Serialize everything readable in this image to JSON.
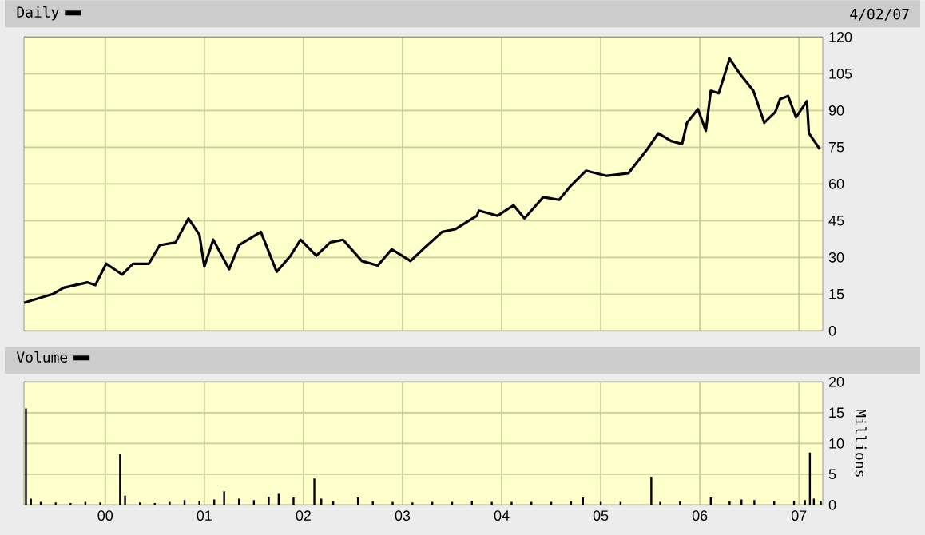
{
  "chart_data": [
    {
      "type": "line",
      "title": null,
      "subtitle": "4/02/07",
      "series": [
        {
          "name": "Daily",
          "color": "#000000",
          "x": [
            1999.18,
            1999.47,
            1999.58,
            1999.82,
            1999.9,
            2000.01,
            2000.17,
            2000.28,
            2000.44,
            2000.55,
            2000.71,
            2000.84,
            2000.95,
            2001.0,
            2001.09,
            2001.25,
            2001.35,
            2001.57,
            2001.73,
            2001.87,
            2001.97,
            2002.13,
            2002.27,
            2002.4,
            2002.59,
            2002.75,
            2002.89,
            2003.08,
            2003.24,
            2003.4,
            2003.53,
            2003.75,
            2003.77,
            2003.96,
            2004.12,
            2004.23,
            2004.42,
            2004.58,
            2004.69,
            2004.85,
            2005.06,
            2005.28,
            2005.47,
            2005.58,
            2005.71,
            2005.82,
            2005.87,
            2005.98,
            2006.06,
            2006.11,
            2006.19,
            2006.3,
            2006.41,
            2006.54,
            2006.65,
            2006.76,
            2006.81,
            2006.89,
            2006.97,
            2007.08,
            2007.1,
            2007.21
          ],
          "values": [
            11.5,
            15.0,
            17.6,
            19.8,
            18.7,
            27.4,
            23.0,
            27.4,
            27.4,
            35.0,
            36.1,
            45.9,
            39.3,
            26.3,
            37.2,
            25.2,
            35.0,
            40.4,
            24.1,
            30.7,
            37.2,
            30.7,
            36.1,
            37.2,
            28.5,
            26.7,
            33.3,
            28.5,
            34.6,
            40.4,
            41.5,
            47.0,
            49.1,
            47.0,
            51.3,
            45.9,
            54.6,
            53.5,
            58.9,
            65.4,
            63.3,
            64.4,
            74.2,
            80.7,
            77.5,
            76.3,
            85.0,
            90.5,
            81.7,
            98.0,
            97.0,
            111.1,
            104.6,
            98.0,
            85.0,
            89.3,
            94.7,
            95.9,
            87.2,
            93.8,
            80.7,
            74.2
          ]
        }
      ],
      "xlim": [
        1999.18,
        2007.24
      ],
      "xticks": [
        2000,
        2001,
        2002,
        2003,
        2004,
        2005,
        2006,
        2007
      ],
      "ylim": [
        0,
        120
      ],
      "yticks": [
        0,
        15,
        30,
        45,
        60,
        75,
        90,
        105,
        120
      ],
      "tick_labels": "y",
      "grid": true,
      "legend": "top left",
      "line_style": "solid"
    },
    {
      "type": "bar",
      "ylabel": "Millions",
      "series": [
        {
          "name": "Volume",
          "color": "#000000",
          "x": [
            1999.2,
            1999.25,
            1999.35,
            1999.5,
            1999.65,
            1999.8,
            1999.95,
            2000.15,
            2000.2,
            2000.35,
            2000.5,
            2000.65,
            2000.8,
            2000.95,
            2001.1,
            2001.2,
            2001.35,
            2001.5,
            2001.65,
            2001.75,
            2001.9,
            2002.11,
            2002.18,
            2002.3,
            2002.55,
            2002.7,
            2002.9,
            2003.1,
            2003.3,
            2003.5,
            2003.7,
            2003.9,
            2004.1,
            2004.3,
            2004.5,
            2004.7,
            2004.82,
            2005.0,
            2005.2,
            2005.51,
            2005.6,
            2005.8,
            2006.11,
            2006.3,
            2006.42,
            2006.55,
            2006.75,
            2006.95,
            2007.06,
            2007.11,
            2007.15,
            2007.22
          ],
          "values": [
            15.7,
            1.0,
            0.5,
            0.4,
            0.3,
            0.5,
            0.4,
            8.3,
            1.5,
            0.4,
            0.3,
            0.5,
            0.8,
            0.7,
            0.9,
            2.2,
            1.0,
            0.8,
            1.3,
            1.8,
            1.2,
            4.3,
            1.0,
            0.6,
            1.2,
            0.6,
            0.5,
            0.4,
            0.5,
            0.5,
            0.7,
            0.5,
            0.5,
            0.5,
            0.5,
            0.6,
            1.2,
            0.5,
            0.5,
            4.6,
            0.5,
            0.6,
            1.2,
            0.6,
            0.9,
            0.8,
            0.6,
            0.7,
            0.8,
            8.5,
            1.0,
            0.7
          ]
        }
      ],
      "xlim": [
        1999.18,
        2007.24
      ],
      "xticks": [
        {
          "value": 2000,
          "label": "00"
        },
        {
          "value": 2001,
          "label": "01"
        },
        {
          "value": 2002,
          "label": "02"
        },
        {
          "value": 2003,
          "label": "03"
        },
        {
          "value": 2004,
          "label": "04"
        },
        {
          "value": 2005,
          "label": "05"
        },
        {
          "value": 2006,
          "label": "06"
        },
        {
          "value": 2007,
          "label": "07"
        }
      ],
      "ylim": [
        0,
        20
      ],
      "yticks": [
        0,
        5,
        10,
        15,
        20
      ],
      "grid": true,
      "legend": "top left"
    }
  ]
}
